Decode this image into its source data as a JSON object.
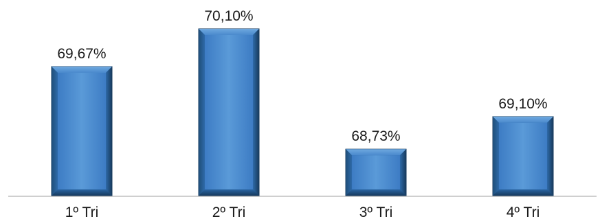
{
  "chart_data": {
    "type": "bar",
    "title": "",
    "xlabel": "",
    "ylabel": "",
    "categories": [
      "1º Tri",
      "2º Tri",
      "3º Tri",
      "4º Tri"
    ],
    "values": [
      69.67,
      70.1,
      68.73,
      69.1
    ],
    "value_labels": [
      "69,67%",
      "70,10%",
      "68,73%",
      "69,10%"
    ],
    "ylim": [
      68.2,
      70.1
    ],
    "grid": false,
    "legend": "none",
    "colors": {
      "bar_light": "#5b9bd5",
      "bar_mid": "#2e75b6",
      "bar_dark": "#1f4e79",
      "bar_edge": "#173a5c",
      "axis": "#bfbfbf"
    }
  }
}
